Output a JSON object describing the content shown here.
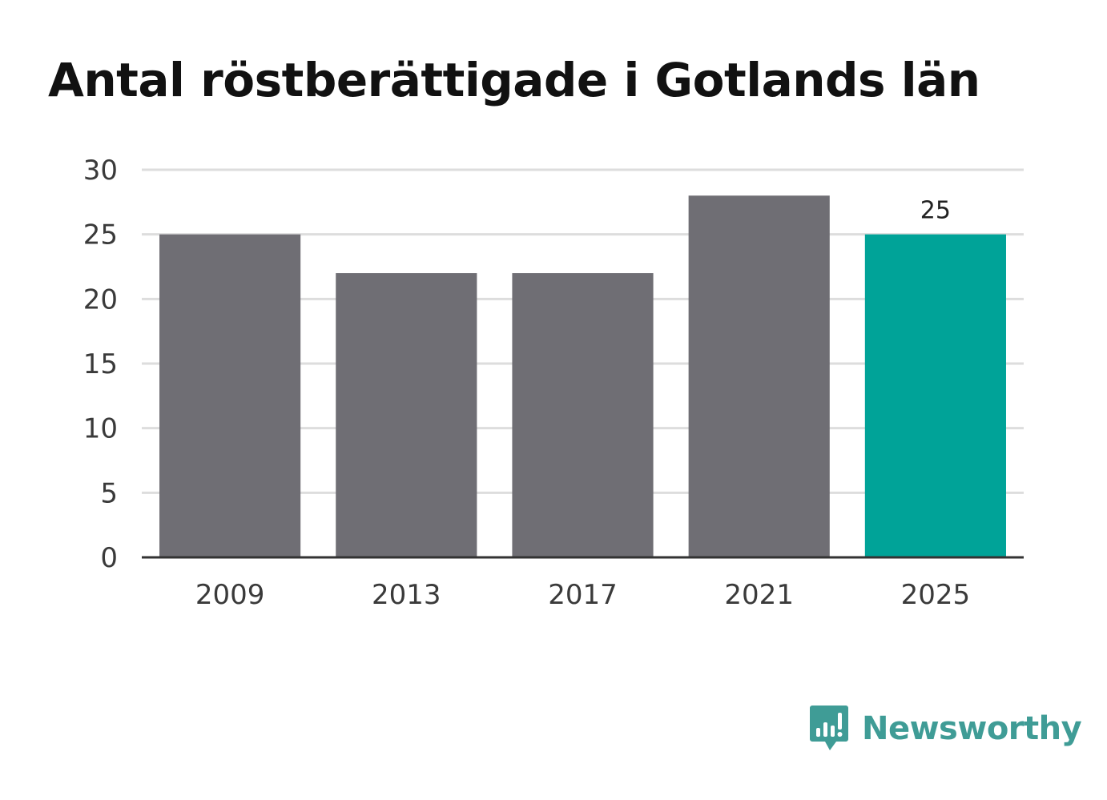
{
  "chart_data": {
    "type": "bar",
    "title": "Antal röstberättigade i Gotlands län",
    "categories": [
      "2009",
      "2013",
      "2017",
      "2021",
      "2025"
    ],
    "values": [
      25,
      22,
      22,
      28,
      25
    ],
    "ylim": [
      0,
      30
    ],
    "yticks": [
      "0",
      "5",
      "10",
      "15",
      "20",
      "25",
      "30"
    ],
    "grid": true,
    "data_labels": [
      {
        "category": "2025",
        "value": "25"
      }
    ],
    "colors": {
      "bar": "#6f6e74",
      "highlight": "#00a398",
      "grid": "#dddddd",
      "axis": "#333333"
    },
    "highlight_category": "2025"
  },
  "branding": {
    "name": "Newsworthy",
    "icon": "newsworthy-logo-icon",
    "color": "#3f9c96"
  }
}
